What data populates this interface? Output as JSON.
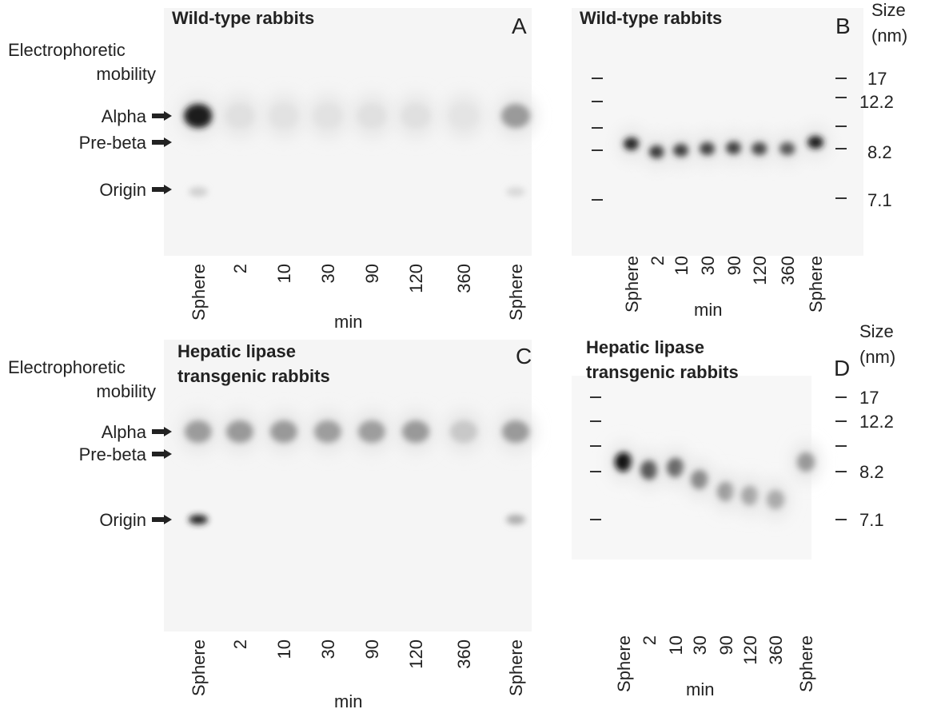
{
  "panels": [
    {
      "letter": "A",
      "title": [
        "Wild-type rabbits"
      ],
      "mobility": {
        "heading": [
          "Electrophoretic",
          "mobility"
        ],
        "bands": [
          "Alpha",
          "Pre-beta",
          "Origin"
        ]
      },
      "lanes": [
        "Sphere",
        "2",
        "10",
        "30",
        "90",
        "120",
        "360",
        "Sphere"
      ],
      "axis_label": "min"
    },
    {
      "letter": "B",
      "title": [
        "Wild-type rabbits"
      ],
      "size": {
        "heading": [
          "Size",
          "(nm)"
        ],
        "markers": [
          "17",
          "12.2",
          "8.2",
          "7.1"
        ]
      },
      "lanes": [
        "Sphere",
        "2",
        "10",
        "30",
        "90",
        "120",
        "360",
        "Sphere"
      ],
      "axis_label": "min"
    },
    {
      "letter": "C",
      "title": [
        "Hepatic lipase",
        "transgenic rabbits"
      ],
      "mobility": {
        "heading": [
          "Electrophoretic",
          "mobility"
        ],
        "bands": [
          "Alpha",
          "Pre-beta",
          "Origin"
        ]
      },
      "lanes": [
        "Sphere",
        "2",
        "10",
        "30",
        "90",
        "120",
        "360",
        "Sphere"
      ],
      "axis_label": "min"
    },
    {
      "letter": "D",
      "title": [
        "Hepatic lipase",
        "transgenic rabbits"
      ],
      "size": {
        "heading": [
          "Size",
          "(nm)"
        ],
        "markers": [
          "17",
          "12.2",
          "8.2",
          "7.1"
        ]
      },
      "lanes": [
        "Sphere",
        "2",
        "10",
        "30",
        "90",
        "120",
        "360",
        "Sphere"
      ],
      "axis_label": "min"
    }
  ]
}
